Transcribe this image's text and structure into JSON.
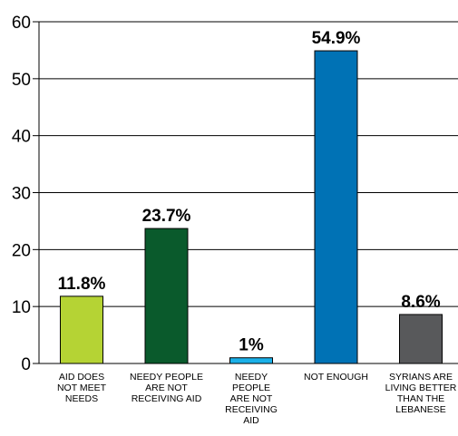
{
  "chart_data": {
    "type": "bar",
    "categories": [
      "AID DOES\nNOT MEET\nNEEDS",
      "NEEDY PEOPLE\nARE NOT\nRECEIVING AID",
      "NEEDY\nPEOPLE\nARE NOT\nRECEIVING\nAID",
      "NOT ENOUGH",
      "SYRIANS ARE\nLIVING BETTER\nTHAN THE\nLEBANESE"
    ],
    "values": [
      11.8,
      23.7,
      1,
      54.9,
      8.6
    ],
    "data_labels": [
      "11.8%",
      "23.7%",
      "1%",
      "54.9%",
      "8.6%"
    ],
    "colors": [
      "#b5d334",
      "#0a5a2c",
      "#1ab0e8",
      "#0072b5",
      "#58595b"
    ],
    "ylim": [
      0,
      60
    ],
    "yticks": [
      "0",
      "10",
      "20",
      "30",
      "40",
      "50",
      "60"
    ],
    "grid": true
  }
}
